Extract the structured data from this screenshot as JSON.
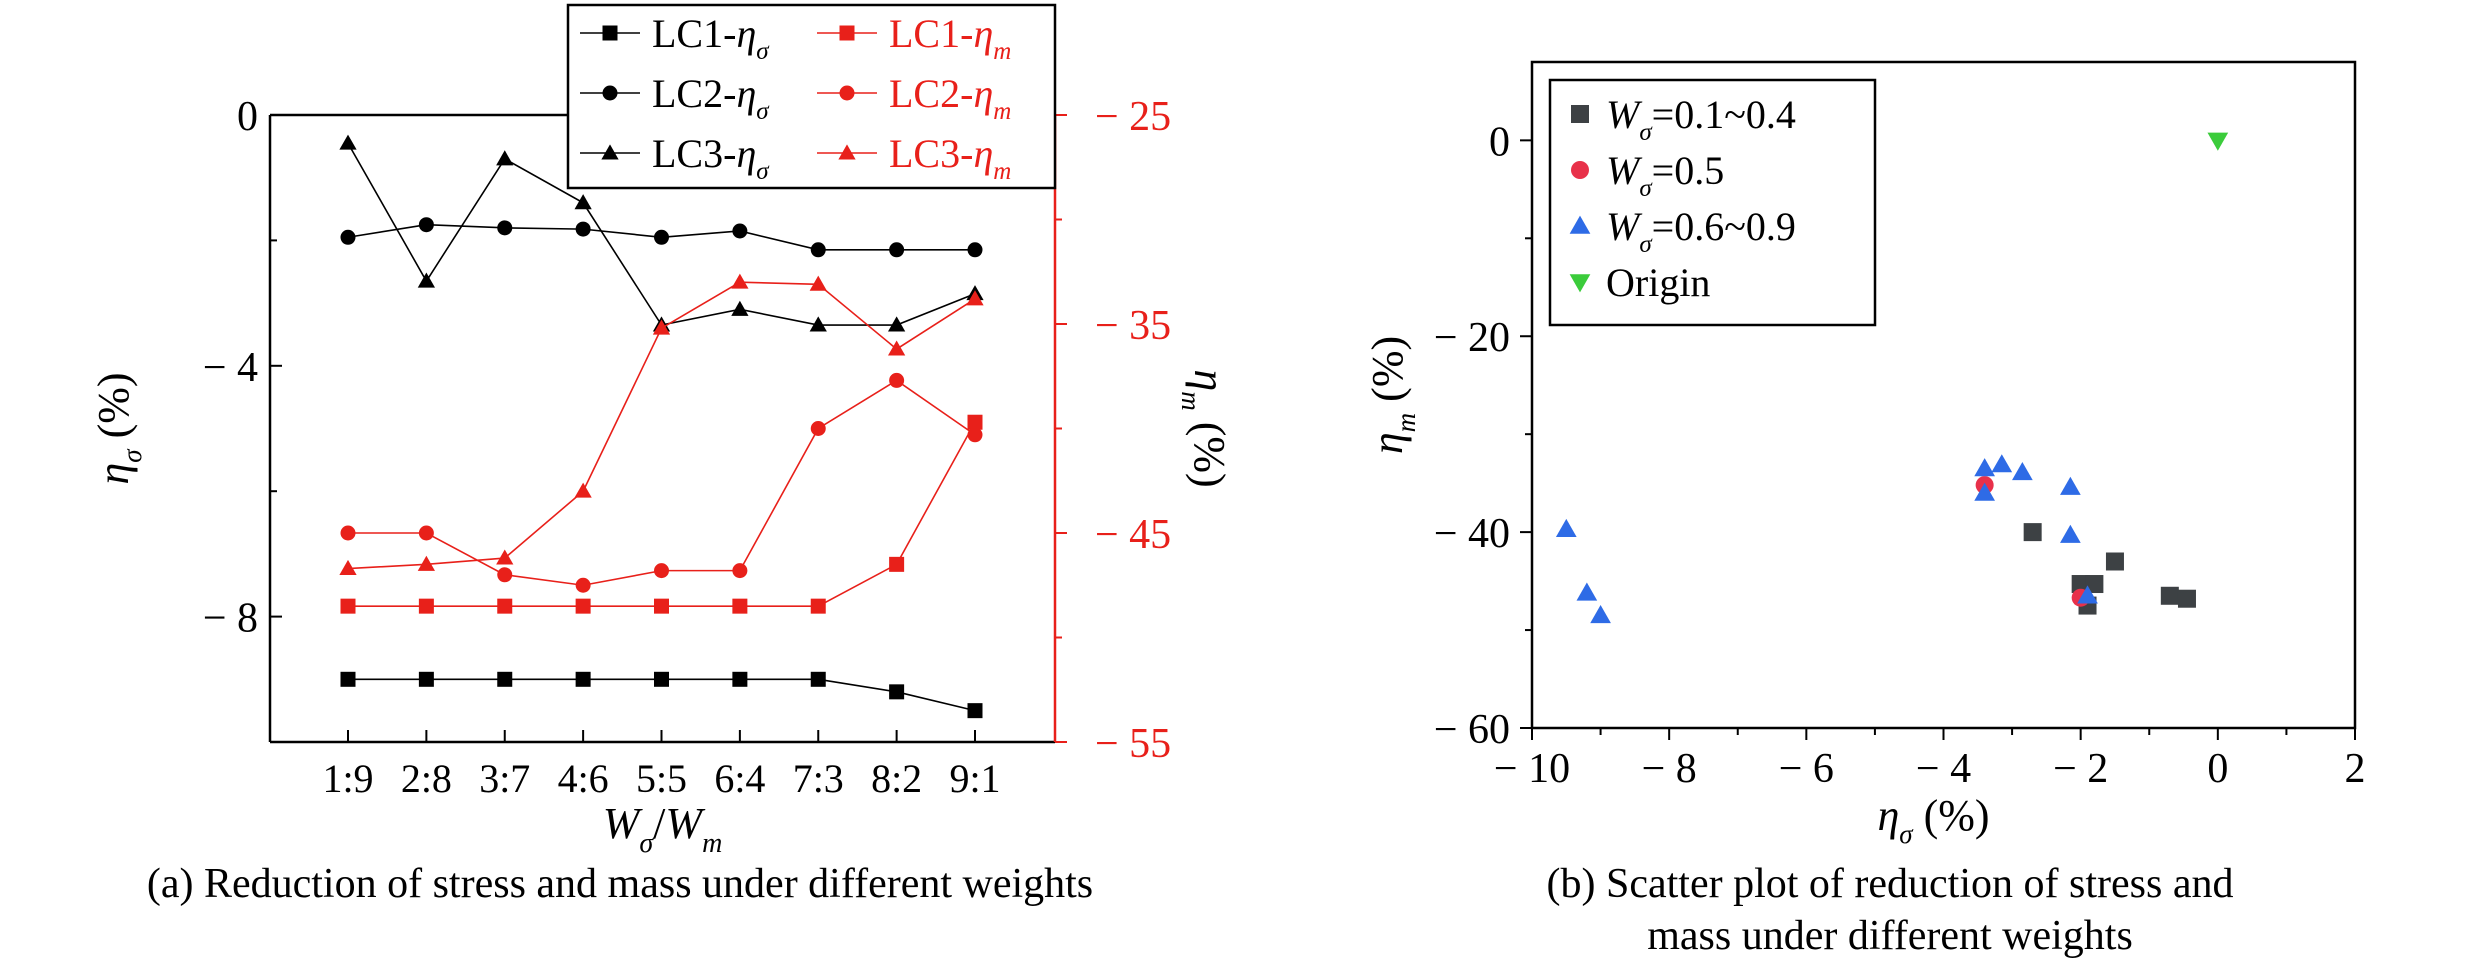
{
  "captions": {
    "a": "(a) Reduction of stress and mass under different weights",
    "b_line1": "(b) Scatter plot of reduction of stress and",
    "b_line2": "mass under different weights"
  },
  "chart_data": [
    {
      "id": "a",
      "type": "line",
      "title": "",
      "xlabel": "Wσ/Wm",
      "ylabel_left": "ησ (%)",
      "ylabel_right": "ηm (%)",
      "categories": [
        "1:9",
        "2:8",
        "3:7",
        "4:6",
        "5:5",
        "6:4",
        "7:3",
        "8:2",
        "9:1"
      ],
      "ylim_left": [
        -10,
        0
      ],
      "yticks_left": [
        0,
        -4,
        -8
      ],
      "ylim_right": [
        -55,
        -25
      ],
      "yticks_right": [
        -25,
        -35,
        -45,
        -55
      ],
      "legend_position": "top-right",
      "series": [
        {
          "name": "LC1-ησ",
          "axis": "left",
          "marker": "square",
          "color": "#000000",
          "values": [
            -9.0,
            -9.0,
            -9.0,
            -9.0,
            -9.0,
            -9.0,
            -9.0,
            -9.2,
            -9.5
          ]
        },
        {
          "name": "LC2-ησ",
          "axis": "left",
          "marker": "circle",
          "color": "#000000",
          "values": [
            -1.95,
            -1.75,
            -1.8,
            -1.82,
            -1.95,
            -1.85,
            -2.15,
            -2.15,
            -2.15
          ]
        },
        {
          "name": "LC3-ησ",
          "axis": "left",
          "marker": "triangle",
          "color": "#000000",
          "values": [
            -0.45,
            -2.65,
            -0.7,
            -1.4,
            -3.35,
            -3.1,
            -3.35,
            -3.35,
            -2.85
          ]
        },
        {
          "name": "LC1-ηm",
          "axis": "right",
          "marker": "square",
          "color": "#e8201a",
          "values": [
            -48.5,
            -48.5,
            -48.5,
            -48.5,
            -48.5,
            -48.5,
            -48.5,
            -46.5,
            -39.7
          ]
        },
        {
          "name": "LC2-ηm",
          "axis": "right",
          "marker": "circle",
          "color": "#e8201a",
          "values": [
            -45.0,
            -45.0,
            -47.0,
            -47.5,
            -46.8,
            -46.8,
            -40.0,
            -37.7,
            -40.3
          ]
        },
        {
          "name": "LC3-ηm",
          "axis": "right",
          "marker": "triangle",
          "color": "#e8201a",
          "values": [
            -46.7,
            -46.5,
            -46.2,
            -43.0,
            -35.2,
            -33.0,
            -33.1,
            -36.2,
            -33.8
          ]
        }
      ]
    },
    {
      "id": "b",
      "type": "scatter",
      "title": "",
      "xlabel": "ησ (%)",
      "ylabel": "ηm (%)",
      "xlim": [
        -10,
        2
      ],
      "xticks": [
        -10,
        -8,
        -6,
        -4,
        -2,
        0,
        2
      ],
      "ylim": [
        -60,
        8
      ],
      "yticks": [
        0,
        -20,
        -40,
        -60
      ],
      "legend_position": "top-left",
      "series": [
        {
          "name": "Wσ=0.1~0.4",
          "marker": "square",
          "color": "#3d4144",
          "points": [
            [
              -2.7,
              -40
            ],
            [
              -1.5,
              -43
            ],
            [
              -2.0,
              -45.3
            ],
            [
              -1.8,
              -45.3
            ],
            [
              -1.9,
              -47.5
            ],
            [
              -0.7,
              -46.5
            ],
            [
              -0.45,
              -46.8
            ]
          ]
        },
        {
          "name": "Wσ=0.5",
          "marker": "circle",
          "color": "#e8314a",
          "points": [
            [
              -3.4,
              -35.2
            ],
            [
              -2.0,
              -46.7
            ]
          ]
        },
        {
          "name": "Wσ=0.6~0.9",
          "marker": "triangle",
          "color": "#2e6be6",
          "points": [
            [
              -9.5,
              -39.7
            ],
            [
              -9.2,
              -46.2
            ],
            [
              -9.0,
              -48.5
            ],
            [
              -3.4,
              -33.5
            ],
            [
              -3.15,
              -33.1
            ],
            [
              -2.85,
              -33.9
            ],
            [
              -3.4,
              -36.0
            ],
            [
              -2.15,
              -35.4
            ],
            [
              -2.15,
              -40.3
            ],
            [
              -1.9,
              -46.5
            ]
          ]
        },
        {
          "name": "Origin",
          "marker": "triangle-down",
          "color": "#3bcc3b",
          "points": [
            [
              0,
              0
            ]
          ]
        }
      ]
    }
  ]
}
